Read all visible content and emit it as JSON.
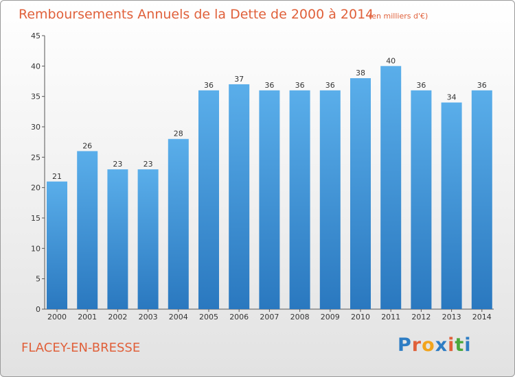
{
  "chart_data": {
    "type": "bar",
    "title": "Remboursements Annuels de la Dette de 2000 à 2014",
    "subtitle": "(en milliers d'€)",
    "categories": [
      "2000",
      "2001",
      "2002",
      "2003",
      "2004",
      "2005",
      "2006",
      "2007",
      "2008",
      "2009",
      "2010",
      "2011",
      "2012",
      "2013",
      "2014"
    ],
    "values": [
      21,
      26,
      23,
      23,
      28,
      36,
      37,
      36,
      36,
      36,
      38,
      40,
      36,
      34,
      36
    ],
    "ylim": [
      0,
      45
    ],
    "yticks": [
      0,
      5,
      10,
      15,
      20,
      25,
      30,
      35,
      40,
      45
    ],
    "xlabel": "",
    "ylabel": "",
    "grid": false,
    "bar_color": "#3d8fd6"
  },
  "commune": "FLACEY-EN-BRESSE",
  "logo": {
    "text": "Proxiti",
    "letters": [
      "P",
      "r",
      "o",
      "x",
      "i",
      "t",
      "i"
    ],
    "colors": [
      "#2e7dc4",
      "#e0603a",
      "#f2a41c",
      "#2e7dc4",
      "#e0603a",
      "#4aa83c",
      "#2e7dc4"
    ]
  }
}
